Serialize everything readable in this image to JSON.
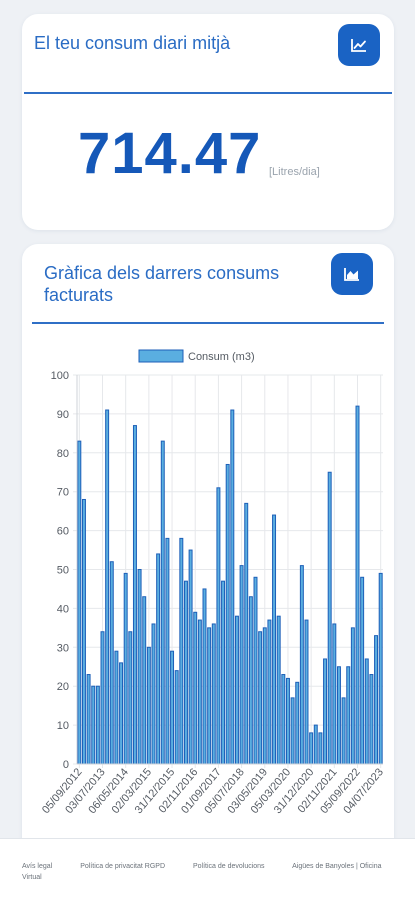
{
  "card_average": {
    "title": "El teu consum diari mitjà",
    "value": "714.47",
    "unit": "[Litres/dia]",
    "icon": "line-chart-icon"
  },
  "card_chart": {
    "title": "Gràfica dels darrers consums facturats",
    "icon": "area-chart-icon"
  },
  "colors": {
    "accent": "#1a63c4",
    "bar_fill": "#5aaee0",
    "bar_stroke": "#1d5fb8"
  },
  "chart_data": {
    "type": "bar",
    "title": "",
    "xlabel": "",
    "ylabel": "",
    "legend": "top",
    "grid": true,
    "ylim": [
      0,
      100
    ],
    "yticks": [
      0,
      10,
      20,
      30,
      40,
      50,
      60,
      70,
      80,
      90,
      100
    ],
    "tick_labels": [
      "05/09/2012",
      "03/07/2013",
      "06/05/2014",
      "02/03/2015",
      "31/12/2015",
      "02/11/2016",
      "01/09/2017",
      "05/07/2018",
      "03/05/2019",
      "05/03/2020",
      "31/12/2020",
      "02/11/2021",
      "05/09/2022",
      "04/07/2023"
    ],
    "series": [
      {
        "name": "Consum (m3)",
        "values": [
          83,
          68,
          23,
          20,
          20,
          34,
          91,
          52,
          29,
          26,
          49,
          34,
          87,
          50,
          43,
          30,
          36,
          54,
          83,
          58,
          29,
          24,
          58,
          47,
          55,
          39,
          37,
          45,
          35,
          36,
          71,
          47,
          77,
          91,
          38,
          51,
          67,
          43,
          48,
          34,
          35,
          37,
          64,
          38,
          23,
          22,
          17,
          21,
          51,
          37,
          8,
          10,
          8,
          27,
          75,
          36,
          25,
          17,
          25,
          35,
          92,
          48,
          27,
          23,
          33,
          49
        ]
      }
    ]
  },
  "footer": {
    "links": [
      "Avís legal",
      "Política de privacitat RGPD",
      "Política de devolucions",
      "Aigües de Banyoles | Oficina Virtual"
    ]
  }
}
